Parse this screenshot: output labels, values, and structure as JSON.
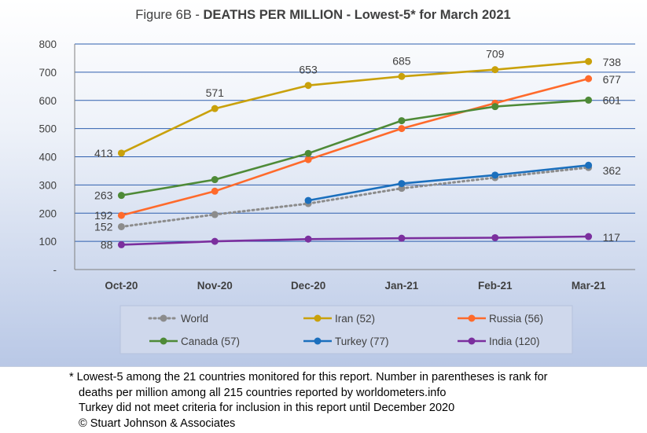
{
  "chart_data": {
    "type": "line",
    "title_prefix": "Figure 6B - ",
    "title_main": "DEATHS PER MILLION - Lowest-5* for March 2021",
    "categories": [
      "Oct-20",
      "Nov-20",
      "Dec-20",
      "Jan-21",
      "Feb-21",
      "Mar-21"
    ],
    "ylim": [
      0,
      800
    ],
    "yticks": [
      "-",
      "100",
      "200",
      "300",
      "400",
      "500",
      "600",
      "700",
      "800"
    ],
    "grid": true,
    "legend_position": "bottom",
    "series": [
      {
        "name": "World",
        "values": [
          152,
          195,
          234,
          288,
          326,
          362
        ],
        "color": "#8c8c8c",
        "dash": true,
        "labels": [
          {
            "index": 0,
            "text": "152"
          },
          {
            "index": 5,
            "text": "362"
          }
        ]
      },
      {
        "name": "Iran (52)",
        "values": [
          413,
          571,
          653,
          685,
          709,
          738
        ],
        "color": "#c9a10b",
        "dash": false,
        "labels": [
          {
            "index": 0,
            "text": "413"
          },
          {
            "index": 1,
            "text": "571"
          },
          {
            "index": 2,
            "text": "653"
          },
          {
            "index": 3,
            "text": "685"
          },
          {
            "index": 4,
            "text": "709"
          },
          {
            "index": 5,
            "text": "738"
          }
        ]
      },
      {
        "name": "Russia (56)",
        "values": [
          192,
          278,
          390,
          500,
          590,
          677
        ],
        "color": "#ff6a2b",
        "dash": false,
        "labels": [
          {
            "index": 0,
            "text": "192"
          },
          {
            "index": 5,
            "text": "677"
          }
        ]
      },
      {
        "name": "Canada (57)",
        "values": [
          263,
          319,
          412,
          528,
          578,
          601
        ],
        "color": "#4e8a37",
        "dash": false,
        "labels": [
          {
            "index": 0,
            "text": "263"
          },
          {
            "index": 5,
            "text": "601"
          }
        ]
      },
      {
        "name": "Turkey (77)",
        "values": [
          null,
          null,
          245,
          305,
          335,
          370
        ],
        "color": "#1b6fbd",
        "dash": false,
        "labels": []
      },
      {
        "name": "India (120)",
        "values": [
          88,
          100,
          108,
          111,
          113,
          117
        ],
        "color": "#7b2f9e",
        "dash": false,
        "labels": [
          {
            "index": 0,
            "text": "88"
          },
          {
            "index": 5,
            "text": "117"
          }
        ]
      }
    ]
  },
  "footnote": {
    "line1": "* Lowest-5 among the 21 countries monitored for this report. Number in parentheses is rank for",
    "line2": "deaths per million among all 215 countries reported by worldometers.info",
    "line3": "Turkey did not meet criteria for inclusion in this report until December 2020",
    "line4": "© Stuart Johnson & Associates"
  }
}
